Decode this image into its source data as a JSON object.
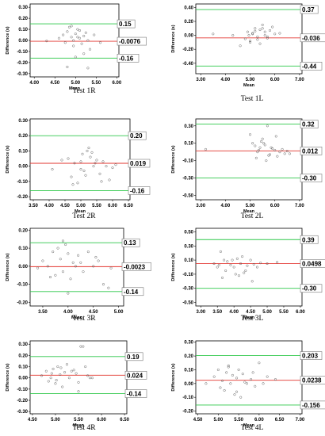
{
  "figure": {
    "colors": {
      "upper": "#2ec84a",
      "mean": "#e2352f",
      "lower": "#2ec84a",
      "point": "#555555"
    },
    "xlabel": "Mean",
    "ylabel": "Difference (s)"
  },
  "chart_data": [
    {
      "type": "scatter",
      "caption": "Test 1R",
      "xlabel": "Mean",
      "ylabel": "Difference (s)",
      "xlim": [
        3.9,
        6.05
      ],
      "ylim": [
        -0.33,
        0.33
      ],
      "xticks": [
        "4.00",
        "4.50",
        "5.00",
        "5.50",
        "6.00"
      ],
      "yticks": [
        "0.30",
        "0.20",
        "0.10",
        "0.00",
        "-0.10",
        "-0.20",
        "-0.30"
      ],
      "lines": {
        "upper": 0.15,
        "mean": -0.0076,
        "lower": -0.16
      },
      "labels": {
        "upper": "0.15",
        "mean": "-0.0076",
        "lower": "-0.16"
      },
      "x": [
        4.3,
        4.6,
        4.7,
        4.75,
        4.8,
        4.85,
        4.9,
        4.95,
        5.0,
        5.05,
        5.1,
        5.15,
        5.2,
        5.25,
        5.3,
        5.35,
        4.9,
        5.0,
        5.1,
        5.2,
        4.8,
        5.45,
        5.6,
        4.95,
        5.05,
        5.3
      ],
      "y": [
        -0.005,
        0.02,
        0.05,
        -0.02,
        0.08,
        0.12,
        0.03,
        -0.05,
        0.06,
        0.1,
        0.02,
        -0.03,
        0.04,
        0.07,
        0.0,
        -0.08,
        0.13,
        -0.15,
        0.09,
        -0.12,
        -0.24,
        0.05,
        -0.02,
        0.0,
        0.03,
        -0.25
      ]
    },
    {
      "type": "scatter",
      "caption": "Test 1L",
      "xlabel": "Mean",
      "ylabel": "Difference (s)",
      "xlim": [
        2.8,
        7.1
      ],
      "ylim": [
        -0.55,
        0.45
      ],
      "xticks": [
        "3.00",
        "4.00",
        "5.00",
        "6.00",
        "7.00"
      ],
      "yticks": [
        "0.40",
        "0.20",
        "0.00",
        "-0.20",
        "-0.40"
      ],
      "lines": {
        "upper": 0.37,
        "mean": -0.036,
        "lower": -0.44
      },
      "labels": {
        "upper": "0.37",
        "mean": "-0.036",
        "lower": "-0.44"
      },
      "x": [
        3.5,
        4.3,
        4.8,
        4.9,
        5.0,
        5.1,
        5.2,
        5.3,
        5.4,
        5.5,
        5.6,
        5.7,
        5.8,
        5.9,
        6.0,
        5.0,
        5.2,
        5.4,
        5.6,
        4.6,
        5.3,
        5.1,
        5.7,
        4.95,
        5.5,
        6.2
      ],
      "y": [
        0.02,
        0.0,
        -0.05,
        0.05,
        -0.08,
        0.03,
        0.06,
        -0.02,
        0.08,
        0.1,
        0.0,
        -0.04,
        0.07,
        0.12,
        0.02,
        -0.1,
        0.1,
        -0.12,
        0.05,
        -0.15,
        -0.06,
        0.02,
        -0.02,
        0.0,
        0.15,
        0.03
      ]
    },
    {
      "type": "scatter",
      "caption": "Test 2R",
      "xlabel": "Mean",
      "ylabel": "Difference (s)",
      "xlim": [
        3.4,
        6.55
      ],
      "ylim": [
        -0.22,
        0.31
      ],
      "xticks": [
        "3.50",
        "4.00",
        "4.50",
        "5.00",
        "5.50",
        "6.00",
        "6.50"
      ],
      "yticks": [
        "0.30",
        "0.20",
        "0.10",
        "0.00",
        "-0.10",
        "-0.20"
      ],
      "lines": {
        "upper": 0.2,
        "mean": 0.019,
        "lower": -0.16
      },
      "labels": {
        "upper": "0.20",
        "mean": "0.019",
        "lower": "-0.16"
      },
      "x": [
        4.1,
        4.4,
        4.6,
        4.7,
        4.8,
        4.9,
        5.0,
        5.05,
        5.1,
        5.2,
        5.25,
        5.3,
        5.4,
        5.5,
        5.6,
        5.7,
        5.8,
        5.9,
        6.0,
        4.75,
        5.15,
        5.35,
        5.45,
        5.0,
        5.65,
        6.1
      ],
      "y": [
        -0.02,
        0.04,
        0.05,
        -0.07,
        0.02,
        -0.11,
        0.03,
        0.08,
        -0.03,
        0.1,
        0.12,
        0.06,
        0.0,
        0.04,
        -0.05,
        0.03,
        0.0,
        -0.09,
        -0.01,
        -0.12,
        -0.06,
        0.09,
        0.02,
        -0.02,
        -0.1,
        0.01
      ]
    },
    {
      "type": "scatter",
      "caption": "Test 2L",
      "xlabel": "Mean",
      "ylabel": "Difference (s)",
      "xlim": [
        2.8,
        7.1
      ],
      "ylim": [
        -0.55,
        0.38
      ],
      "xticks": [
        "3.00",
        "4.00",
        "5.00",
        "6.00",
        "7.00"
      ],
      "yticks": [
        "0.30",
        "0.10",
        "-0.10",
        "-0.30",
        "-0.50"
      ],
      "lines": {
        "upper": 0.32,
        "mean": 0.012,
        "lower": -0.3
      },
      "labels": {
        "upper": "0.32",
        "mean": "0.012",
        "lower": "-0.30"
      },
      "x": [
        3.2,
        5.0,
        5.1,
        5.2,
        5.3,
        5.4,
        5.5,
        5.6,
        5.7,
        5.8,
        5.9,
        6.0,
        6.1,
        6.2,
        6.3,
        6.4,
        6.5,
        5.25,
        5.45,
        5.65,
        5.85,
        6.05,
        5.35,
        5.75,
        6.6,
        5.55
      ],
      "y": [
        0.03,
        0.2,
        0.1,
        0.07,
        0.0,
        0.05,
        0.15,
        0.08,
        0.3,
        -0.03,
        0.04,
        0.02,
        -0.05,
        0.0,
        0.03,
        -0.02,
        0.01,
        -0.07,
        0.12,
        -0.1,
        0.05,
        0.18,
        0.02,
        -0.04,
        -0.02,
        0.1
      ]
    },
    {
      "type": "scatter",
      "caption": "Test 3R",
      "xlabel": "Mean",
      "ylabel": "Difference (s)",
      "xlim": [
        3.25,
        5.1
      ],
      "ylim": [
        -0.22,
        0.21
      ],
      "xticks": [
        "3.50",
        "4.00",
        "4.50",
        "5.00"
      ],
      "yticks": [
        "0.20",
        "0.10",
        "0.00",
        "-0.10",
        "-0.20"
      ],
      "lines": {
        "upper": 0.13,
        "mean": -0.0023,
        "lower": -0.14
      },
      "labels": {
        "upper": "0.13",
        "mean": "-0.0023",
        "lower": "-0.14"
      },
      "x": [
        3.4,
        3.5,
        3.6,
        3.7,
        3.75,
        3.8,
        3.85,
        3.9,
        3.95,
        4.0,
        4.05,
        4.1,
        4.15,
        4.2,
        4.3,
        4.4,
        4.5,
        4.6,
        4.7,
        4.8,
        3.65,
        3.9,
        4.0,
        4.25,
        4.55,
        4.85
      ],
      "y": [
        -0.01,
        0.03,
        0.0,
        0.08,
        -0.05,
        0.1,
        0.04,
        -0.03,
        0.12,
        0.07,
        -0.07,
        0.02,
        0.0,
        0.06,
        -0.03,
        0.08,
        0.0,
        0.03,
        -0.1,
        -0.12,
        -0.06,
        0.14,
        -0.15,
        0.02,
        0.05,
        -0.01
      ]
    },
    {
      "type": "scatter",
      "caption": "Test 3L",
      "xlabel": "Mean",
      "ylabel": "Difference (s)",
      "xlim": [
        2.85,
        6.05
      ],
      "ylim": [
        -0.55,
        0.55
      ],
      "xticks": [
        "3.00",
        "3.50",
        "4.00",
        "4.50",
        "5.00",
        "5.50",
        "6.00"
      ],
      "yticks": [
        "0.50",
        "0.30",
        "0.10",
        "-0.10",
        "-0.30",
        "-0.50"
      ],
      "lines": {
        "upper": 0.39,
        "mean": 0.0498,
        "lower": -0.3
      },
      "labels": {
        "upper": "0.39",
        "mean": "0.0498",
        "lower": "-0.30"
      },
      "x": [
        3.4,
        3.5,
        3.6,
        3.7,
        3.75,
        3.8,
        3.9,
        4.0,
        4.05,
        4.1,
        4.2,
        4.3,
        4.4,
        4.5,
        4.6,
        4.7,
        4.8,
        5.0,
        5.3,
        3.65,
        3.95,
        4.15,
        4.35,
        4.55,
        3.55,
        4.25
      ],
      "y": [
        0.05,
        0.0,
        0.22,
        0.1,
        -0.05,
        0.08,
        0.03,
        0.0,
        -0.1,
        0.12,
        0.05,
        -0.08,
        0.02,
        0.1,
        0.04,
        0.0,
        0.06,
        0.05,
        0.07,
        -0.15,
        0.1,
        -0.12,
        -0.05,
        -0.2,
        0.03,
        0.15
      ]
    },
    {
      "type": "scatter",
      "caption": "Test 4R",
      "xlabel": "Mean",
      "ylabel": "Difference (s)",
      "xlim": [
        4.45,
        6.55
      ],
      "ylim": [
        -0.32,
        0.33
      ],
      "xticks": [
        "4.50",
        "5.00",
        "5.50",
        "6.00",
        "6.50"
      ],
      "yticks": [
        "0.30",
        "0.20",
        "0.10",
        "0.00",
        "-0.10",
        "-0.20",
        "-0.30"
      ],
      "lines": {
        "upper": 0.19,
        "mean": 0.024,
        "lower": -0.14
      },
      "labels": {
        "upper": "0.19",
        "mean": "0.024",
        "lower": "-0.14"
      },
      "x": [
        4.7,
        4.8,
        4.85,
        4.9,
        4.95,
        5.0,
        5.05,
        5.1,
        5.15,
        5.2,
        5.25,
        5.3,
        5.4,
        5.45,
        5.5,
        5.55,
        5.6,
        5.65,
        5.7,
        5.8,
        4.92,
        5.02,
        5.12,
        5.35,
        5.5,
        5.75
      ],
      "y": [
        0.02,
        0.06,
        -0.03,
        0.0,
        0.08,
        -0.05,
        0.1,
        0.03,
        -0.08,
        0.05,
        0.12,
        0.0,
        0.07,
        0.04,
        -0.12,
        0.28,
        0.28,
        0.1,
        0.02,
        0.0,
        0.04,
        -0.02,
        0.09,
        0.06,
        -0.04,
        0.0
      ]
    },
    {
      "type": "scatter",
      "caption": "Test 4L",
      "xlabel": "Mean",
      "ylabel": "Difference (s)",
      "xlim": [
        4.45,
        7.05
      ],
      "ylim": [
        -0.22,
        0.31
      ],
      "xticks": [
        "4.50",
        "5.00",
        "5.50",
        "6.00",
        "6.50",
        "7.00"
      ],
      "yticks": [
        "0.30",
        "0.20",
        "0.10",
        "0.00",
        "-0.10",
        "-0.20"
      ],
      "lines": {
        "upper": 0.203,
        "mean": 0.0238,
        "lower": -0.156
      },
      "labels": {
        "upper": "0.203",
        "mean": "0.0238",
        "lower": "-0.156"
      },
      "x": [
        4.7,
        4.9,
        5.0,
        5.1,
        5.15,
        5.2,
        5.25,
        5.3,
        5.35,
        5.4,
        5.45,
        5.5,
        5.55,
        5.6,
        5.7,
        5.8,
        5.9,
        6.0,
        6.2,
        6.4,
        5.05,
        5.25,
        5.45,
        5.65,
        5.85,
        6.1
      ],
      "y": [
        0.0,
        0.05,
        0.1,
        0.02,
        -0.05,
        0.08,
        0.12,
        0.0,
        0.06,
        -0.08,
        0.04,
        0.1,
        -0.1,
        0.07,
        0.0,
        0.03,
        -0.02,
        0.15,
        0.05,
        0.03,
        -0.03,
        0.13,
        -0.06,
        0.01,
        0.08,
        0.0
      ]
    }
  ]
}
